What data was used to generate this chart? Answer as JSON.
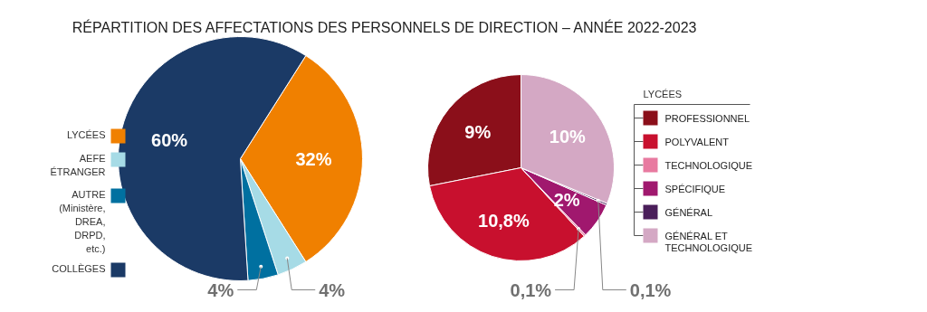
{
  "chart_data": [
    {
      "type": "pie",
      "title": "RÉPARTITION DES AFFECTATIONS DES PERSONNELS DE DIRECTION – ANNÉE 2022-2023",
      "categories": [
        "LYCÉES",
        "AEFE\nÉTRANGER",
        "AUTRE\n(Ministère,\nDREA,\nDRPD,\netc.)",
        "COLLÈGES"
      ],
      "values": [
        32,
        4,
        4,
        60
      ],
      "colors": [
        "#f08000",
        "#a6dbe6",
        "#0070a0",
        "#1b3a66"
      ],
      "value_labels": [
        "32%",
        "4%",
        "4%",
        "60%"
      ],
      "legend": "left"
    },
    {
      "type": "pie",
      "legend_title": "LYCÉES",
      "categories": [
        "PROFESSIONNEL",
        "POLYVALENT",
        "TECHNOLOGIQUE",
        "SPÉCIFIQUE",
        "GÉNÉRAL",
        "GÉNÉRAL ET\nTECHNOLOGIQUE"
      ],
      "values": [
        9,
        10.8,
        0.1,
        2,
        0.1,
        10
      ],
      "colors": [
        "#8b0f1a",
        "#c8102e",
        "#e87aa0",
        "#a0186e",
        "#4a1e5a",
        "#d4a8c4"
      ],
      "value_labels": [
        "9%",
        "10,8%",
        "0,1%",
        "2%",
        "0,1%",
        "10%"
      ],
      "legend": "right"
    }
  ]
}
